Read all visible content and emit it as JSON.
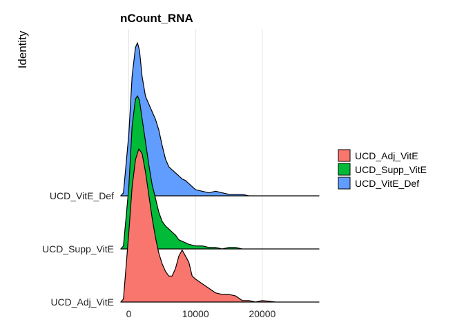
{
  "chart_data": {
    "type": "area",
    "title": "nCount_RNA",
    "xlabel": "",
    "ylabel": "Identity",
    "xlim": [
      -1500,
      28500
    ],
    "x_ticks": [
      0,
      10000,
      20000
    ],
    "x_tick_labels": [
      "0",
      "10000",
      "20000"
    ],
    "categories": [
      "UCD_Adj_VitE",
      "UCD_Supp_VitE",
      "UCD_VitE_Def"
    ],
    "grid": "vertical major lines only",
    "legend_position": "right",
    "series": [
      {
        "name": "UCD_Adj_VitE",
        "color": "#F8766D",
        "x": [
          -1200,
          -800,
          0,
          500,
          1000,
          1500,
          2000,
          2500,
          3000,
          3500,
          4000,
          4500,
          5000,
          5500,
          6000,
          6500,
          7000,
          7500,
          8000,
          8500,
          9000,
          9500,
          10000,
          11000,
          12000,
          13000,
          14000,
          15000,
          16000,
          17000,
          18000,
          19000,
          20000,
          22000,
          25000,
          28500
        ],
        "density": [
          0.0,
          0.02,
          0.45,
          0.75,
          0.93,
          1.0,
          0.97,
          0.85,
          0.7,
          0.55,
          0.42,
          0.32,
          0.25,
          0.2,
          0.17,
          0.17,
          0.22,
          0.3,
          0.34,
          0.3,
          0.26,
          0.17,
          0.15,
          0.12,
          0.09,
          0.06,
          0.05,
          0.05,
          0.04,
          0.01,
          0.01,
          0.0,
          0.01,
          0.0,
          0.0,
          0.0
        ]
      },
      {
        "name": "UCD_Supp_VitE",
        "color": "#00BA38",
        "x": [
          -1200,
          -800,
          0,
          500,
          1000,
          1300,
          1600,
          2000,
          2500,
          3000,
          3500,
          4000,
          4500,
          5000,
          5500,
          6000,
          6500,
          7000,
          7500,
          8000,
          8500,
          9000,
          10000,
          11000,
          12000,
          13000,
          14000,
          15000,
          16000,
          17000,
          18000,
          20000,
          22000,
          25000,
          28500
        ],
        "density": [
          0.0,
          0.02,
          0.4,
          0.8,
          0.98,
          1.0,
          0.97,
          0.85,
          0.7,
          0.55,
          0.42,
          0.33,
          0.24,
          0.18,
          0.15,
          0.13,
          0.11,
          0.09,
          0.06,
          0.05,
          0.04,
          0.03,
          0.02,
          0.02,
          0.01,
          0.01,
          0.0,
          0.01,
          0.01,
          0.0,
          0.0,
          0.0,
          0.0,
          0.0,
          0.0
        ]
      },
      {
        "name": "UCD_VitE_Def",
        "color": "#619CFF",
        "x": [
          -1200,
          -800,
          0,
          500,
          1000,
          1300,
          1600,
          2000,
          2500,
          3000,
          3500,
          4000,
          4500,
          5000,
          5500,
          6000,
          6500,
          7000,
          7500,
          8000,
          8500,
          9000,
          10000,
          11000,
          12000,
          13000,
          14000,
          15000,
          16000,
          17000,
          18000,
          20000,
          22000,
          25000,
          28500
        ],
        "density": [
          0.0,
          0.02,
          0.4,
          0.78,
          0.97,
          1.0,
          0.95,
          0.78,
          0.65,
          0.6,
          0.55,
          0.5,
          0.43,
          0.33,
          0.24,
          0.19,
          0.17,
          0.15,
          0.13,
          0.11,
          0.1,
          0.08,
          0.04,
          0.03,
          0.02,
          0.03,
          0.02,
          0.01,
          0.01,
          0.01,
          0.0,
          0.0,
          0.0,
          0.0,
          0.0
        ]
      }
    ]
  }
}
